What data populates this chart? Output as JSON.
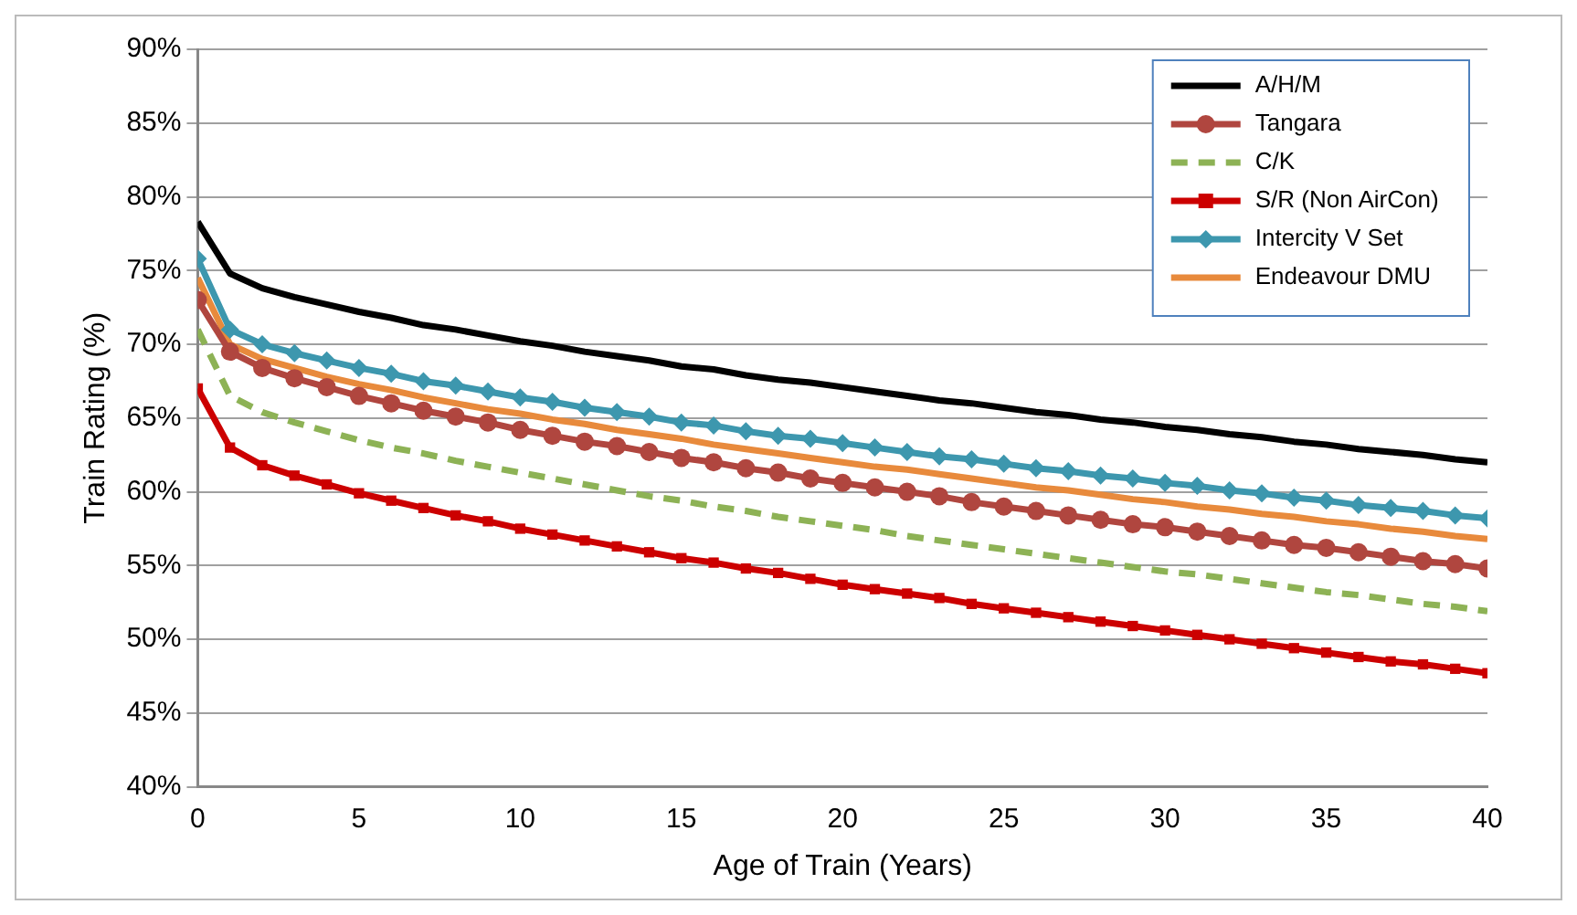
{
  "chart_data": {
    "type": "line",
    "xlabel": "Age of Train (Years)",
    "ylabel": "Train Rating (%)",
    "x": [
      0,
      1,
      2,
      3,
      4,
      5,
      6,
      7,
      8,
      9,
      10,
      11,
      12,
      13,
      14,
      15,
      16,
      17,
      18,
      19,
      20,
      21,
      22,
      23,
      24,
      25,
      26,
      27,
      28,
      29,
      30,
      31,
      32,
      33,
      34,
      35,
      36,
      37,
      38,
      39,
      40
    ],
    "xlim": [
      0,
      40
    ],
    "xticks": [
      0,
      5,
      10,
      15,
      20,
      25,
      30,
      35,
      40
    ],
    "ylim": [
      40,
      90
    ],
    "yticks": [
      {
        "value": 40,
        "label": "40%"
      },
      {
        "value": 45,
        "label": "45%"
      },
      {
        "value": 50,
        "label": "50%"
      },
      {
        "value": 55,
        "label": "55%"
      },
      {
        "value": 60,
        "label": "60%"
      },
      {
        "value": 65,
        "label": "65%"
      },
      {
        "value": 70,
        "label": "70%"
      },
      {
        "value": 75,
        "label": "75%"
      },
      {
        "value": 80,
        "label": "80%"
      },
      {
        "value": 85,
        "label": "85%"
      },
      {
        "value": 90,
        "label": "90%"
      }
    ],
    "grid": "y",
    "legend": "top right",
    "marker": "none",
    "line_style": "solid",
    "series": [
      {
        "name": "A/H/M",
        "color": "#000000",
        "values": [
          78.3,
          74.8,
          73.8,
          73.2,
          72.7,
          72.2,
          71.8,
          71.3,
          71.0,
          70.6,
          70.2,
          69.9,
          69.5,
          69.2,
          68.9,
          68.5,
          68.3,
          67.9,
          67.6,
          67.4,
          67.1,
          66.8,
          66.5,
          66.2,
          66.0,
          65.7,
          65.4,
          65.2,
          64.9,
          64.7,
          64.4,
          64.2,
          63.9,
          63.7,
          63.4,
          63.2,
          62.9,
          62.7,
          62.5,
          62.2,
          62.0
        ]
      },
      {
        "name": "Tangara",
        "color": "#b0463f",
        "marker": "circle",
        "values": [
          73.0,
          69.5,
          68.4,
          67.7,
          67.1,
          66.5,
          66.0,
          65.5,
          65.1,
          64.7,
          64.2,
          63.8,
          63.4,
          63.1,
          62.7,
          62.3,
          62.0,
          61.6,
          61.3,
          60.9,
          60.6,
          60.3,
          60.0,
          59.7,
          59.3,
          59.0,
          58.7,
          58.4,
          58.1,
          57.8,
          57.6,
          57.3,
          57.0,
          56.7,
          56.4,
          56.2,
          55.9,
          55.6,
          55.3,
          55.1,
          54.8
        ]
      },
      {
        "name": "C/K",
        "color": "#8db255",
        "line_style": "dashed",
        "values": [
          71.0,
          66.5,
          65.4,
          64.7,
          64.1,
          63.5,
          63.0,
          62.6,
          62.1,
          61.7,
          61.3,
          60.9,
          60.5,
          60.1,
          59.7,
          59.4,
          59.0,
          58.7,
          58.3,
          58.0,
          57.7,
          57.4,
          57.0,
          56.7,
          56.4,
          56.1,
          55.8,
          55.5,
          55.2,
          54.9,
          54.6,
          54.4,
          54.1,
          53.8,
          53.5,
          53.2,
          53.0,
          52.7,
          52.4,
          52.2,
          51.9
        ]
      },
      {
        "name": "S/R (Non AirCon)",
        "color": "#cc0000",
        "marker": "square",
        "values": [
          67.0,
          63.0,
          61.8,
          61.1,
          60.5,
          59.9,
          59.4,
          58.9,
          58.4,
          58.0,
          57.5,
          57.1,
          56.7,
          56.3,
          55.9,
          55.5,
          55.2,
          54.8,
          54.5,
          54.1,
          53.7,
          53.4,
          53.1,
          52.8,
          52.4,
          52.1,
          51.8,
          51.5,
          51.2,
          50.9,
          50.6,
          50.3,
          50.0,
          49.7,
          49.4,
          49.1,
          48.8,
          48.5,
          48.3,
          48.0,
          47.7
        ]
      },
      {
        "name": "Intercity V Set",
        "color": "#3d97ae",
        "marker": "diamond",
        "values": [
          75.8,
          71.0,
          70.0,
          69.4,
          68.9,
          68.4,
          68.0,
          67.5,
          67.2,
          66.8,
          66.4,
          66.1,
          65.7,
          65.4,
          65.1,
          64.7,
          64.5,
          64.1,
          63.8,
          63.6,
          63.3,
          63.0,
          62.7,
          62.4,
          62.2,
          61.9,
          61.6,
          61.4,
          61.1,
          60.9,
          60.6,
          60.4,
          60.1,
          59.9,
          59.6,
          59.4,
          59.1,
          58.9,
          58.7,
          58.4,
          58.2
        ]
      },
      {
        "name": "Endeavour DMU",
        "color": "#e88a3c",
        "values": [
          74.5,
          70.0,
          69.0,
          68.4,
          67.8,
          67.3,
          66.9,
          66.4,
          66.0,
          65.6,
          65.3,
          64.9,
          64.6,
          64.2,
          63.9,
          63.6,
          63.2,
          62.9,
          62.6,
          62.3,
          62.0,
          61.7,
          61.5,
          61.2,
          60.9,
          60.6,
          60.3,
          60.1,
          59.8,
          59.5,
          59.3,
          59.0,
          58.8,
          58.5,
          58.3,
          58.0,
          57.8,
          57.5,
          57.3,
          57.0,
          56.8
        ]
      }
    ]
  }
}
